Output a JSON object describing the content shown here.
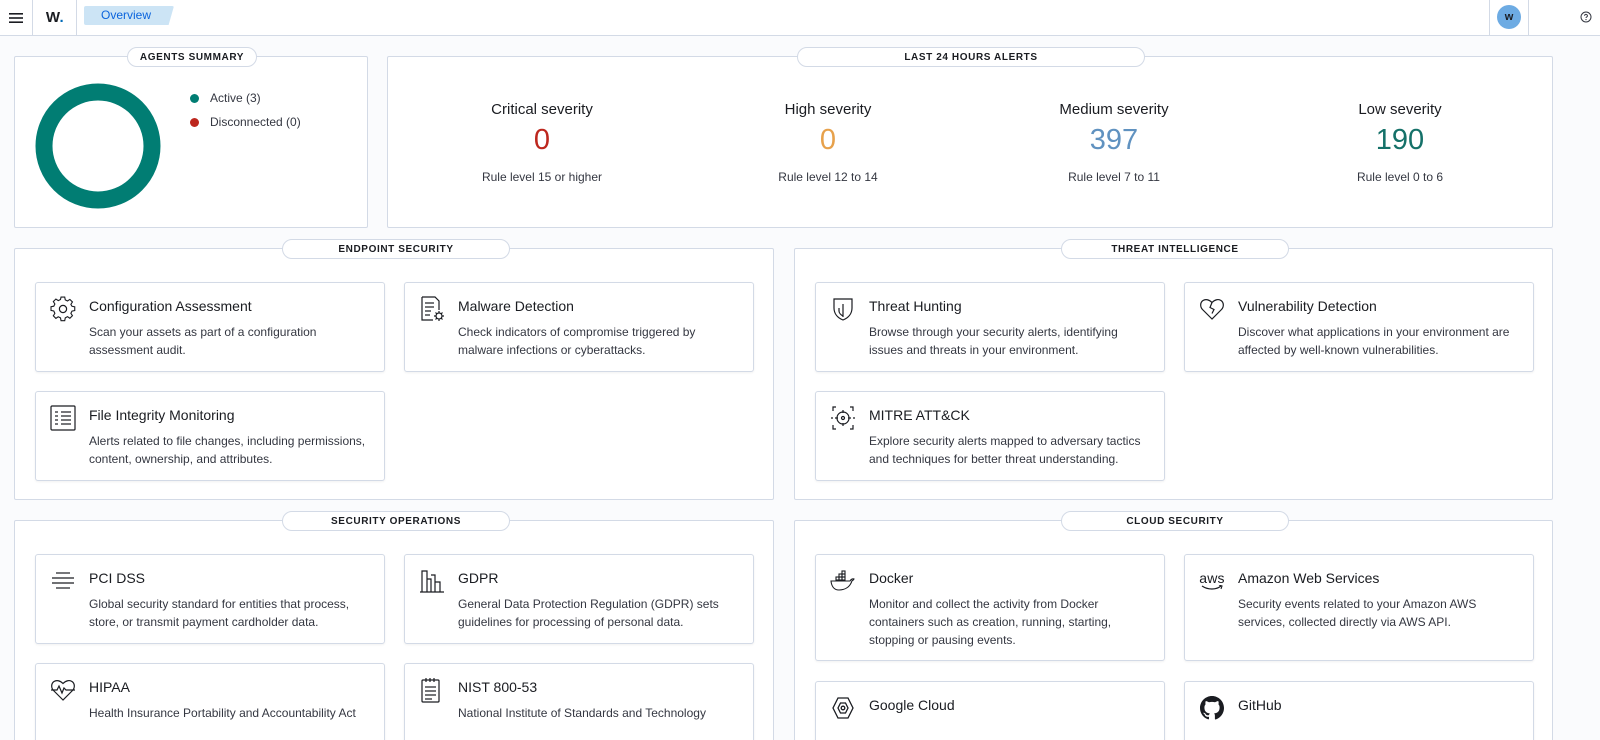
{
  "topbar": {
    "logo": "W",
    "logo_dot": ".",
    "breadcrumb": "Overview",
    "avatar_initial": "w"
  },
  "agents_summary": {
    "title": "AGENTS SUMMARY",
    "legend": [
      {
        "label": "Active (3)",
        "color": "#017d73"
      },
      {
        "label": "Disconnected (0)",
        "color": "#bd271e"
      }
    ],
    "donut": {
      "active": 3,
      "disconnected": 0,
      "color": "#017d73"
    }
  },
  "alerts": {
    "title": "LAST 24 HOURS ALERTS",
    "columns": [
      {
        "title": "Critical severity",
        "value": "0",
        "subtitle": "Rule level 15 or higher",
        "color": "#bd271e"
      },
      {
        "title": "High severity",
        "value": "0",
        "subtitle": "Rule level 12 to 14",
        "color": "#e7a14b"
      },
      {
        "title": "Medium severity",
        "value": "397",
        "subtitle": "Rule level 7 to 11",
        "color": "#6092c0"
      },
      {
        "title": "Low severity",
        "value": "190",
        "subtitle": "Rule level 0 to 6",
        "color": "#157169"
      }
    ]
  },
  "endpoint_security": {
    "title": "ENDPOINT SECURITY",
    "cards": [
      {
        "icon": "gear-icon",
        "title": "Configuration Assessment",
        "description": "Scan your assets as part of a configuration assessment audit."
      },
      {
        "icon": "document-gear-icon",
        "title": "Malware Detection",
        "description": "Check indicators of compromise triggered by malware infections or cyberattacks."
      },
      {
        "icon": "list-document-icon",
        "title": "File Integrity Monitoring",
        "description": "Alerts related to file changes, including permissions, content, ownership, and attributes."
      }
    ]
  },
  "threat_intelligence": {
    "title": "THREAT INTELLIGENCE",
    "cards": [
      {
        "icon": "shield-icon",
        "title": "Threat Hunting",
        "description": "Browse through your security alerts, identifying issues and threats in your environment."
      },
      {
        "icon": "broken-heart-icon",
        "title": "Vulnerability Detection",
        "description": "Discover what applications in your environment are affected by well-known vulnerabilities."
      },
      {
        "icon": "crosshair-icon",
        "title": "MITRE ATT&CK",
        "description": "Explore security alerts mapped to adversary tactics and techniques for better threat understanding."
      }
    ]
  },
  "security_operations": {
    "title": "SECURITY OPERATIONS",
    "cards": [
      {
        "icon": "lines-icon",
        "title": "PCI DSS",
        "description": "Global security standard for entities that process, store, or transmit payment cardholder data."
      },
      {
        "icon": "building-icon",
        "title": "GDPR",
        "description": "General Data Protection Regulation (GDPR) sets guidelines for processing of personal data."
      },
      {
        "icon": "heartbeat-icon",
        "title": "HIPAA",
        "description": "Health Insurance Portability and Accountability Act"
      },
      {
        "icon": "checklist-icon",
        "title": "NIST 800-53",
        "description": "National Institute of Standards and Technology"
      }
    ]
  },
  "cloud_security": {
    "title": "CLOUD SECURITY",
    "cards": [
      {
        "icon": "docker-icon",
        "title": "Docker",
        "description": "Monitor and collect the activity from Docker containers such as creation, running, starting, stopping or pausing events."
      },
      {
        "icon": "aws-icon",
        "icon_text": "aws",
        "title": "Amazon Web Services",
        "description": "Security events related to your Amazon AWS services, collected directly via AWS API."
      },
      {
        "icon": "google-cloud-icon",
        "title": "Google Cloud",
        "description": ""
      },
      {
        "icon": "github-icon",
        "title": "GitHub",
        "description": ""
      }
    ]
  }
}
